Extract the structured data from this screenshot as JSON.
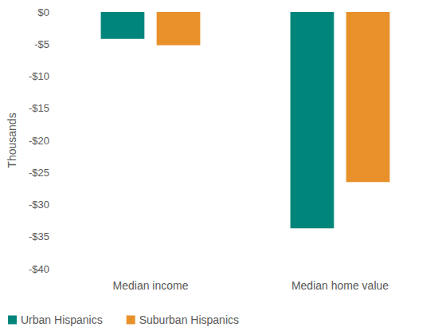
{
  "chart_data": {
    "type": "bar",
    "categories": [
      "Median income",
      "Median home value"
    ],
    "series": [
      {
        "name": "Urban Hispanics",
        "color": "#00857a",
        "values": [
          -4.2,
          -33.7
        ]
      },
      {
        "name": "Suburban Hispanics",
        "color": "#e8912b",
        "values": [
          -5.2,
          -26.5
        ]
      }
    ],
    "y_label": "Thousands",
    "ylim": [
      -40,
      0
    ],
    "yticks": [
      {
        "value": -40,
        "label": "-$40"
      },
      {
        "value": -35,
        "label": "-$35"
      },
      {
        "value": -30,
        "label": "-$30"
      },
      {
        "value": -25,
        "label": "-$25"
      },
      {
        "value": -20,
        "label": "-$20"
      },
      {
        "value": -15,
        "label": "-$15"
      },
      {
        "value": -10,
        "label": "-$10"
      },
      {
        "value": -5,
        "label": "-$5"
      },
      {
        "value": 0,
        "label": "$0"
      }
    ],
    "grid": false,
    "legend": "bottom"
  }
}
